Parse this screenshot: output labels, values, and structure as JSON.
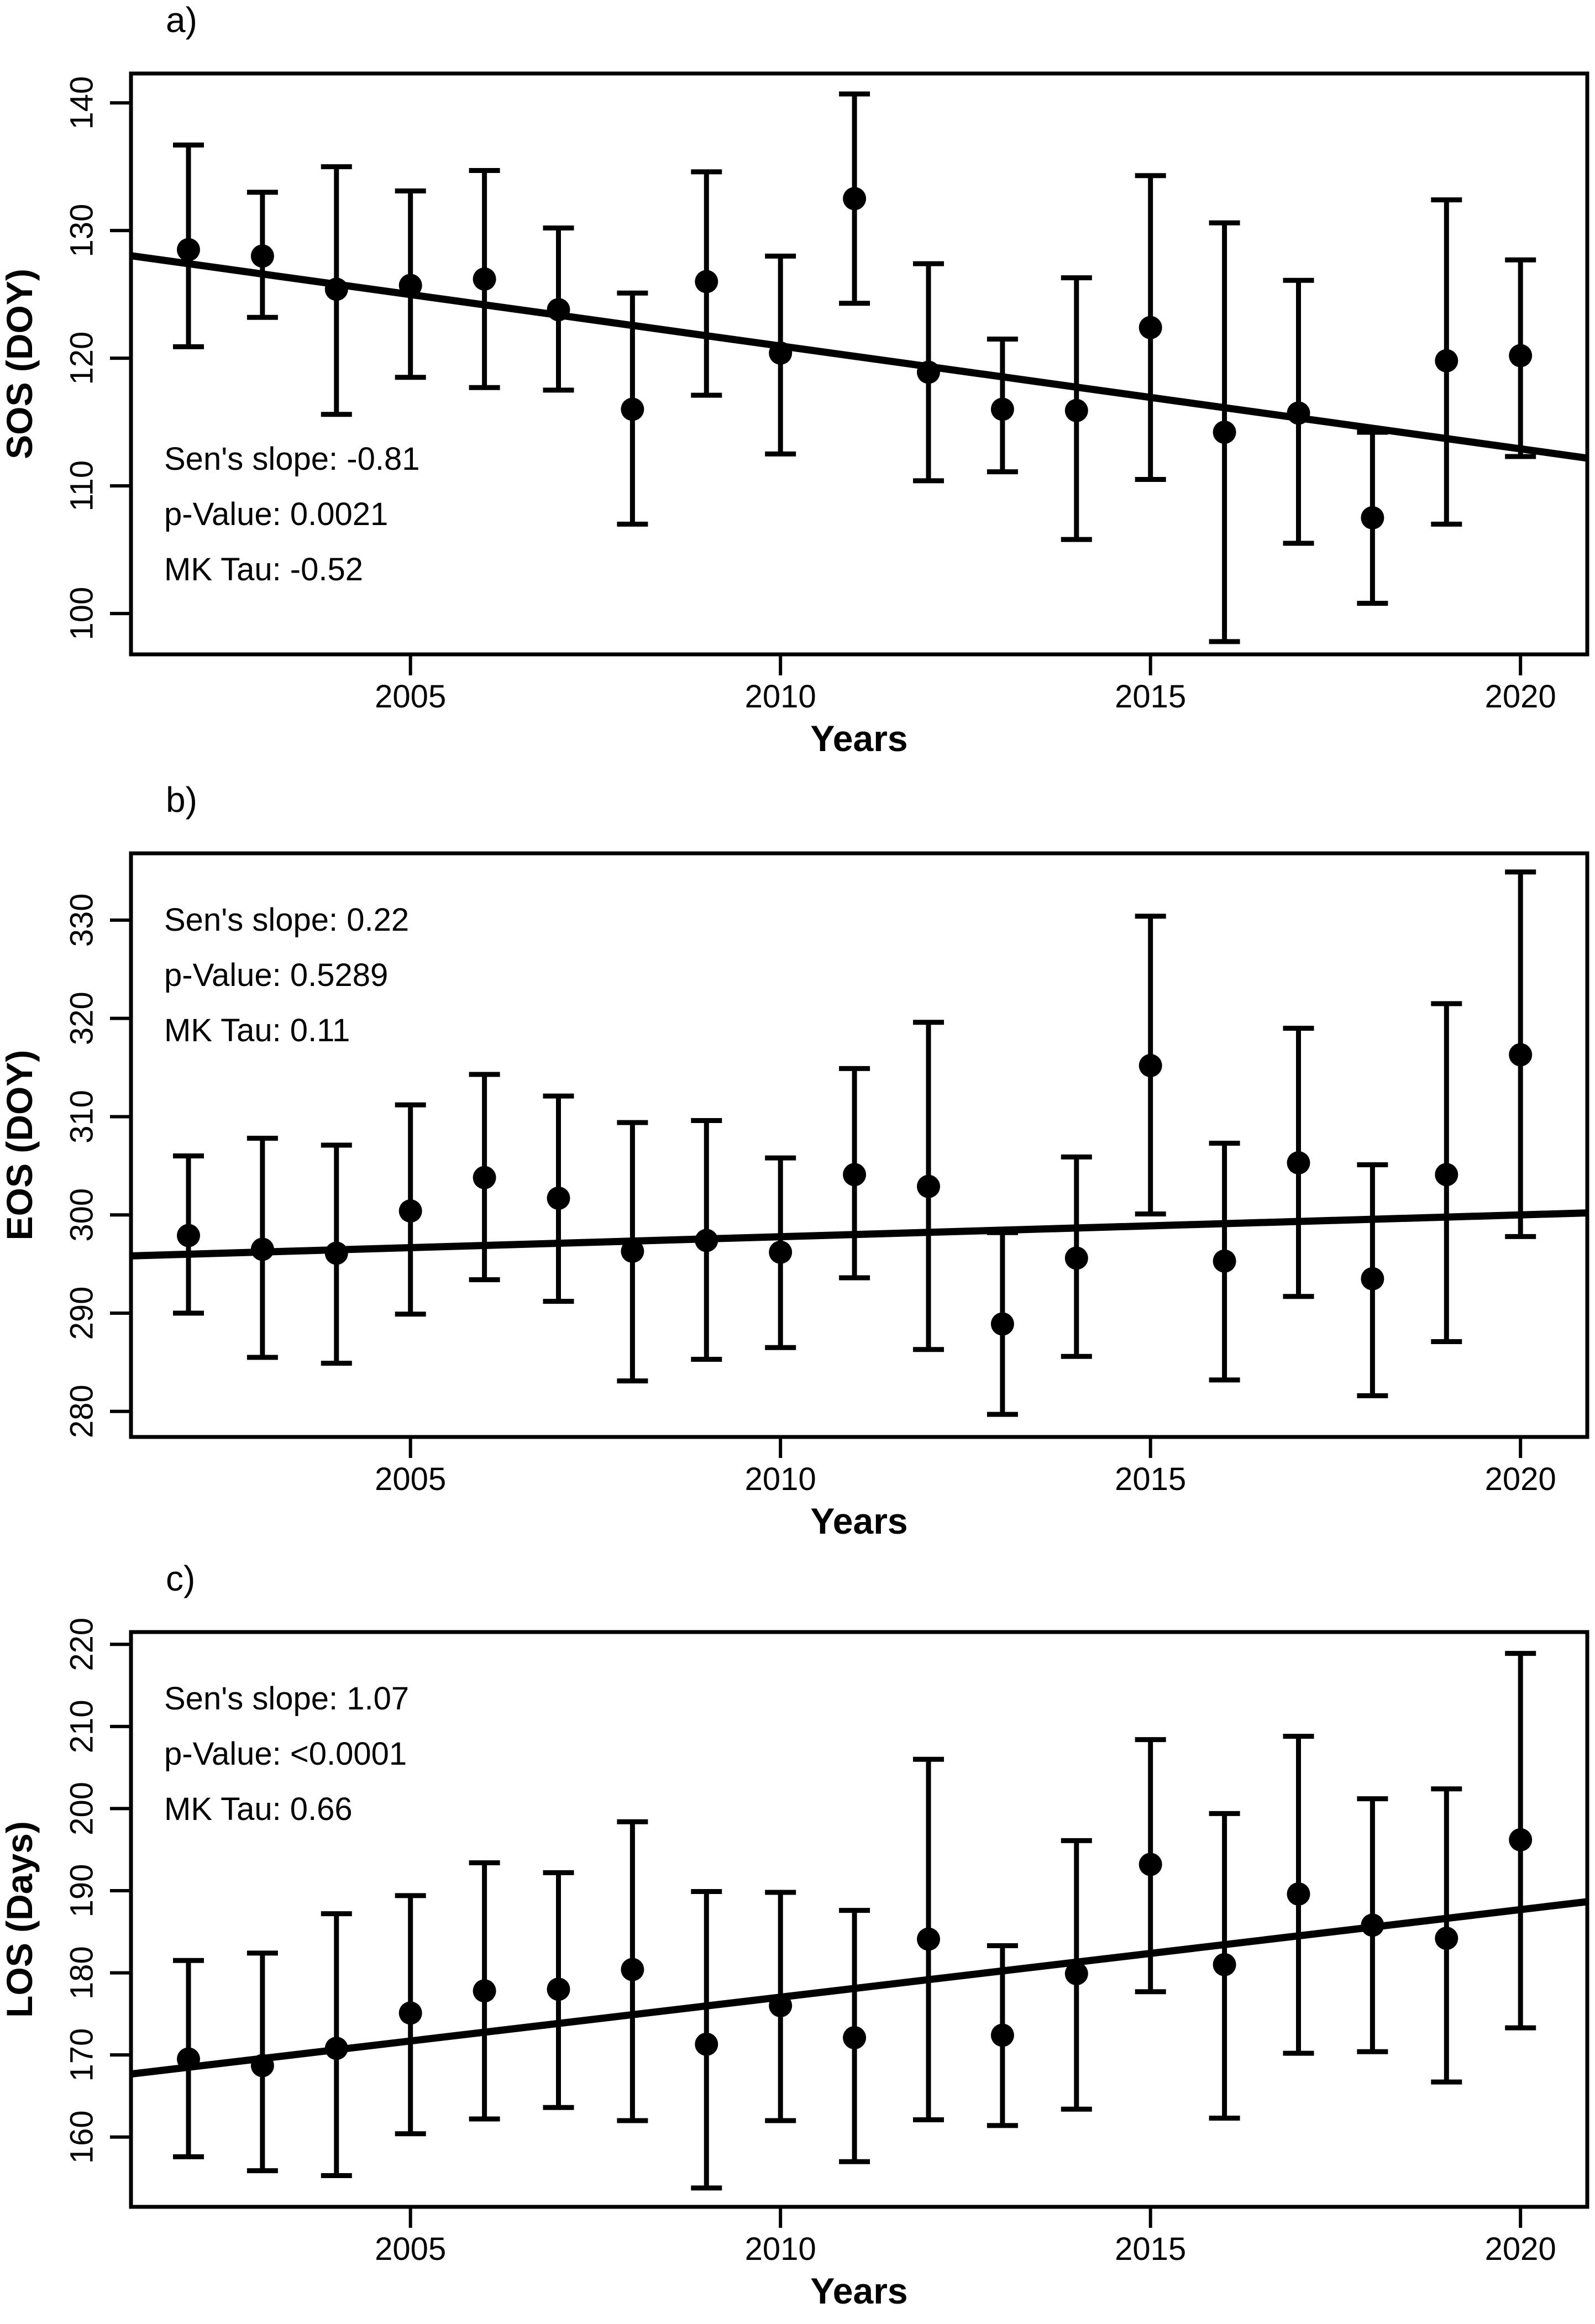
{
  "figure": {
    "background": "#ffffff",
    "foreground": "#000000",
    "x_axis_label": "Years",
    "x_ticks": [
      2005,
      2010,
      2015,
      2020
    ],
    "x_range": [
      2001.25,
      2020.9
    ]
  },
  "chart_data": [
    {
      "type": "scatter",
      "panel_letter": "a)",
      "ylabel": "SOS (DOY)",
      "xlabel": "Years",
      "ylim": [
        96.8,
        142.3
      ],
      "yticks": [
        100,
        110,
        120,
        130,
        140
      ],
      "xticks": [
        2005,
        2010,
        2015,
        2020
      ],
      "x": [
        2002,
        2003,
        2004,
        2005,
        2006,
        2007,
        2008,
        2009,
        2010,
        2011,
        2012,
        2013,
        2014,
        2015,
        2016,
        2017,
        2018,
        2019,
        2020
      ],
      "values": [
        128.5,
        128.0,
        125.4,
        125.7,
        126.2,
        123.8,
        116.0,
        126.0,
        120.4,
        132.5,
        118.9,
        116.0,
        115.9,
        122.4,
        114.2,
        115.7,
        107.5,
        119.8,
        120.2
      ],
      "err_low": [
        120.9,
        123.2,
        115.6,
        118.5,
        117.7,
        117.5,
        107.0,
        117.1,
        112.5,
        124.3,
        110.4,
        111.1,
        105.8,
        110.5,
        97.8,
        105.5,
        100.8,
        107.0,
        112.3
      ],
      "err_high": [
        136.7,
        133.0,
        135.0,
        133.1,
        134.7,
        130.2,
        125.1,
        134.6,
        128.0,
        140.7,
        127.4,
        121.5,
        126.3,
        134.3,
        130.6,
        126.1,
        114.2,
        132.4,
        127.7
      ],
      "trend": {
        "value_at_2002": 127.4,
        "value_at_2020": 112.9
      },
      "stats_lines": [
        "Sen's slope: -0.81",
        "p-Value: 0.0021",
        "MK Tau: -0.52"
      ],
      "stats_position": "lower-left",
      "legend": "none",
      "grid": "off"
    },
    {
      "type": "scatter",
      "panel_letter": "b)",
      "ylabel": "EOS (DOY)",
      "xlabel": "Years",
      "ylim": [
        277.4,
        336.8
      ],
      "yticks": [
        280,
        290,
        300,
        310,
        320,
        330
      ],
      "xticks": [
        2005,
        2010,
        2015,
        2020
      ],
      "x": [
        2002,
        2003,
        2004,
        2005,
        2006,
        2007,
        2008,
        2009,
        2010,
        2011,
        2012,
        2013,
        2014,
        2015,
        2016,
        2017,
        2018,
        2019,
        2020
      ],
      "values": [
        297.9,
        296.5,
        296.1,
        300.4,
        303.8,
        301.7,
        296.3,
        297.4,
        296.2,
        304.1,
        302.9,
        288.9,
        295.6,
        315.2,
        295.3,
        305.3,
        293.5,
        304.1,
        316.3
      ],
      "err_low": [
        290.0,
        285.5,
        284.9,
        289.9,
        293.4,
        291.2,
        283.1,
        285.3,
        286.5,
        293.6,
        286.3,
        279.7,
        285.6,
        300.1,
        283.2,
        291.7,
        281.6,
        287.1,
        297.8
      ],
      "err_high": [
        306.0,
        307.8,
        307.1,
        311.2,
        314.3,
        312.1,
        309.4,
        309.6,
        305.8,
        314.9,
        319.6,
        298.2,
        305.9,
        330.4,
        307.3,
        319.0,
        305.1,
        321.5,
        334.9
      ],
      "trend": {
        "value_at_2002": 296.0,
        "value_at_2020": 300.0
      },
      "stats_lines": [
        "Sen's slope: 0.22",
        "p-Value: 0.5289",
        "MK Tau: 0.11"
      ],
      "stats_position": "upper-left",
      "legend": "none",
      "grid": "off"
    },
    {
      "type": "scatter",
      "panel_letter": "c)",
      "ylabel": "LOS (Days)",
      "xlabel": "Years",
      "ylim": [
        151.5,
        221.5
      ],
      "yticks": [
        160,
        170,
        180,
        190,
        200,
        210,
        220
      ],
      "xticks": [
        2005,
        2010,
        2015,
        2020
      ],
      "x": [
        2002,
        2003,
        2004,
        2005,
        2006,
        2007,
        2008,
        2009,
        2010,
        2011,
        2012,
        2013,
        2014,
        2015,
        2016,
        2017,
        2018,
        2019,
        2020
      ],
      "values": [
        169.5,
        168.7,
        170.8,
        175.1,
        177.8,
        178.0,
        180.4,
        171.3,
        176.0,
        172.1,
        184.1,
        172.4,
        179.9,
        193.2,
        181.0,
        189.6,
        185.8,
        184.2,
        196.2
      ],
      "err_low": [
        157.6,
        155.9,
        155.3,
        160.4,
        162.2,
        163.6,
        162.0,
        153.8,
        162.0,
        157.0,
        162.1,
        161.4,
        163.4,
        177.7,
        162.3,
        170.2,
        170.4,
        166.7,
        173.3
      ],
      "err_high": [
        181.5,
        182.4,
        187.2,
        189.4,
        193.4,
        192.2,
        198.4,
        189.9,
        189.8,
        187.6,
        206.0,
        183.3,
        196.1,
        208.4,
        199.4,
        208.8,
        201.2,
        202.4,
        218.9
      ],
      "trend": {
        "value_at_2002": 168.5,
        "value_at_2020": 187.7
      },
      "stats_lines": [
        "Sen's slope: 1.07",
        "p-Value: <0.0001",
        "MK Tau: 0.66"
      ],
      "stats_position": "upper-left",
      "legend": "none",
      "grid": "off"
    }
  ]
}
